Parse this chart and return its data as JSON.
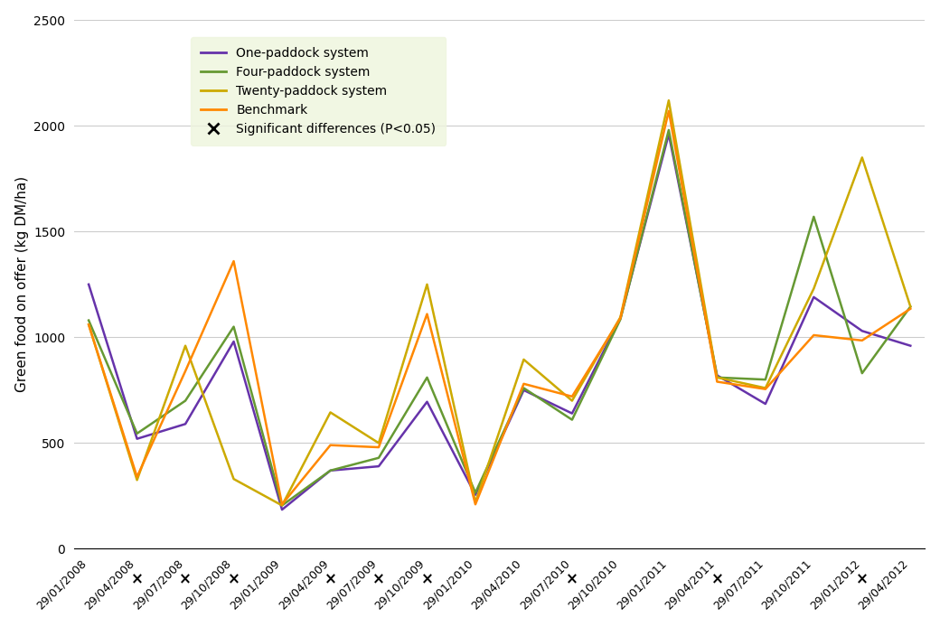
{
  "x_labels": [
    "29/01/2008",
    "29/04/2008",
    "29/07/2008",
    "29/10/2008",
    "29/01/2009",
    "29/04/2009",
    "29/07/2009",
    "29/10/2009",
    "29/01/2010",
    "29/04/2010",
    "29/07/2010",
    "29/10/2010",
    "29/01/2011",
    "29/04/2011",
    "29/07/2011",
    "29/10/2011",
    "29/01/2012",
    "29/04/2012"
  ],
  "one_paddock": [
    1250,
    520,
    590,
    980,
    185,
    370,
    390,
    695,
    255,
    750,
    640,
    1090,
    1960,
    820,
    685,
    1190,
    1030,
    960
  ],
  "four_paddock": [
    1080,
    545,
    700,
    1050,
    205,
    370,
    430,
    810,
    265,
    760,
    610,
    1085,
    1980,
    810,
    800,
    1570,
    830,
    1145
  ],
  "twenty_paddock": [
    1060,
    325,
    960,
    330,
    205,
    645,
    500,
    1250,
    220,
    895,
    700,
    1095,
    2120,
    810,
    760,
    1230,
    1850,
    1145
  ],
  "benchmark": [
    1060,
    340,
    840,
    1360,
    210,
    490,
    480,
    1110,
    210,
    780,
    720,
    1090,
    2070,
    790,
    755,
    1010,
    985,
    1135
  ],
  "color_one": "#6633aa",
  "color_four": "#669933",
  "color_twenty": "#ccaa00",
  "color_benchmark": "#ff8800",
  "sig_diff_positions": [
    1,
    2,
    3,
    5,
    6,
    7,
    10,
    13,
    16
  ],
  "ylabel": "Green food on offer (kg DM/ha)",
  "ylim": [
    0,
    2500
  ],
  "yticks": [
    0,
    500,
    1000,
    1500,
    2000,
    2500
  ],
  "legend_bg": "#eef5dd",
  "legend_labels": [
    "One-paddock system",
    "Four-paddock system",
    "Twenty-paddock system",
    "Benchmark"
  ],
  "sig_label": "Significant differences (P<0.05)"
}
